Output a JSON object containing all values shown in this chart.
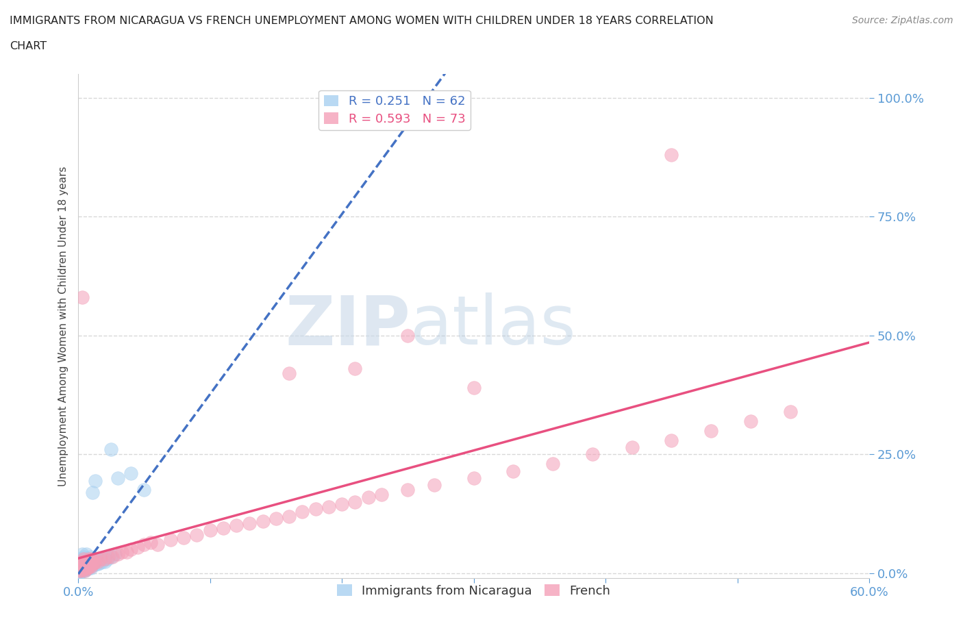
{
  "title_line1": "IMMIGRANTS FROM NICARAGUA VS FRENCH UNEMPLOYMENT AMONG WOMEN WITH CHILDREN UNDER 18 YEARS CORRELATION",
  "title_line2": "CHART",
  "source_text": "Source: ZipAtlas.com",
  "ylabel": "Unemployment Among Women with Children Under 18 years",
  "xlim": [
    0.0,
    0.6
  ],
  "ylim": [
    -0.01,
    1.05
  ],
  "y_ticks": [
    0.0,
    0.25,
    0.5,
    0.75,
    1.0
  ],
  "y_tick_labels": [
    "0.0%",
    "25.0%",
    "50.0%",
    "75.0%",
    "100.0%"
  ],
  "x_ticks": [
    0.0,
    0.1,
    0.2,
    0.3,
    0.4,
    0.5,
    0.6
  ],
  "x_tick_labels": [
    "0.0%",
    "",
    "",
    "",
    "",
    "",
    "60.0%"
  ],
  "legend_entries": [
    {
      "label": "R = 0.251   N = 62",
      "color": "#a8d0f0"
    },
    {
      "label": "R = 0.593   N = 73",
      "color": "#f4a0b8"
    }
  ],
  "blue_scatter_color": "#a8d0f0",
  "pink_scatter_color": "#f4a0b8",
  "blue_line_color": "#4472c4",
  "pink_line_color": "#e85080",
  "watermark_zip": "ZIP",
  "watermark_atlas": "atlas",
  "background_color": "#ffffff",
  "grid_color": "#d8d8d8",
  "tick_color": "#5b9bd5",
  "blue_scatter_x": [
    0.001,
    0.001,
    0.001,
    0.002,
    0.002,
    0.002,
    0.002,
    0.003,
    0.003,
    0.003,
    0.003,
    0.004,
    0.004,
    0.004,
    0.005,
    0.005,
    0.005,
    0.006,
    0.006,
    0.006,
    0.007,
    0.007,
    0.008,
    0.008,
    0.009,
    0.009,
    0.01,
    0.01,
    0.011,
    0.012,
    0.013,
    0.014,
    0.015,
    0.016,
    0.017,
    0.018,
    0.02,
    0.022,
    0.025,
    0.028,
    0.001,
    0.001,
    0.002,
    0.002,
    0.003,
    0.004,
    0.005,
    0.006,
    0.007,
    0.008,
    0.009,
    0.01,
    0.012,
    0.015,
    0.018,
    0.02,
    0.025,
    0.03,
    0.04,
    0.05,
    0.011,
    0.013
  ],
  "blue_scatter_y": [
    0.005,
    0.01,
    0.015,
    0.005,
    0.01,
    0.02,
    0.03,
    0.005,
    0.015,
    0.025,
    0.04,
    0.01,
    0.02,
    0.035,
    0.005,
    0.015,
    0.03,
    0.008,
    0.02,
    0.04,
    0.01,
    0.025,
    0.012,
    0.03,
    0.015,
    0.035,
    0.012,
    0.028,
    0.018,
    0.022,
    0.018,
    0.025,
    0.02,
    0.022,
    0.028,
    0.025,
    0.025,
    0.03,
    0.035,
    0.04,
    0.002,
    0.008,
    0.003,
    0.018,
    0.008,
    0.012,
    0.008,
    0.015,
    0.012,
    0.018,
    0.02,
    0.022,
    0.025,
    0.028,
    0.03,
    0.032,
    0.26,
    0.2,
    0.21,
    0.175,
    0.17,
    0.195
  ],
  "pink_scatter_x": [
    0.001,
    0.001,
    0.002,
    0.002,
    0.002,
    0.003,
    0.003,
    0.003,
    0.004,
    0.004,
    0.004,
    0.005,
    0.005,
    0.005,
    0.006,
    0.006,
    0.007,
    0.007,
    0.008,
    0.008,
    0.009,
    0.01,
    0.01,
    0.011,
    0.012,
    0.013,
    0.015,
    0.017,
    0.02,
    0.023,
    0.026,
    0.03,
    0.033,
    0.037,
    0.04,
    0.045,
    0.05,
    0.055,
    0.06,
    0.07,
    0.08,
    0.09,
    0.1,
    0.11,
    0.12,
    0.13,
    0.14,
    0.15,
    0.16,
    0.17,
    0.18,
    0.19,
    0.2,
    0.21,
    0.22,
    0.23,
    0.25,
    0.27,
    0.3,
    0.33,
    0.36,
    0.39,
    0.42,
    0.45,
    0.48,
    0.51,
    0.54,
    0.003,
    0.25,
    0.45,
    0.16,
    0.3,
    0.21
  ],
  "pink_scatter_y": [
    0.005,
    0.01,
    0.005,
    0.012,
    0.02,
    0.008,
    0.015,
    0.025,
    0.008,
    0.018,
    0.03,
    0.005,
    0.015,
    0.025,
    0.01,
    0.02,
    0.012,
    0.025,
    0.015,
    0.03,
    0.018,
    0.015,
    0.03,
    0.02,
    0.022,
    0.025,
    0.025,
    0.03,
    0.03,
    0.035,
    0.035,
    0.04,
    0.045,
    0.045,
    0.05,
    0.055,
    0.06,
    0.065,
    0.06,
    0.07,
    0.075,
    0.08,
    0.09,
    0.095,
    0.1,
    0.105,
    0.11,
    0.115,
    0.12,
    0.13,
    0.135,
    0.14,
    0.145,
    0.15,
    0.16,
    0.165,
    0.175,
    0.185,
    0.2,
    0.215,
    0.23,
    0.25,
    0.265,
    0.28,
    0.3,
    0.32,
    0.34,
    0.58,
    0.5,
    0.88,
    0.42,
    0.39,
    0.43
  ]
}
